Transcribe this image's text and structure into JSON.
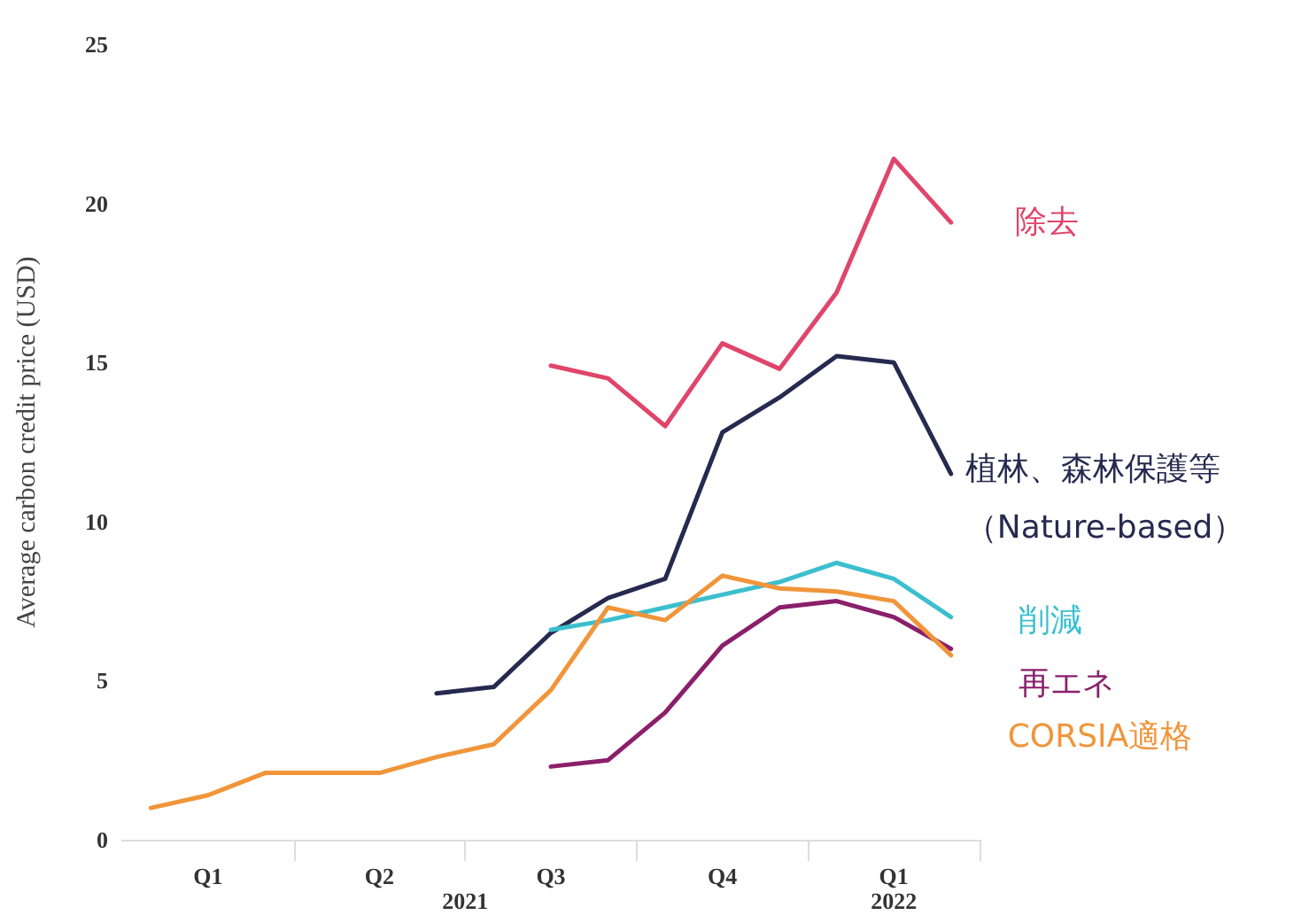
{
  "chart_data": {
    "type": "line",
    "ylabel": "Average carbon credit price (USD)",
    "categories": [
      null,
      "Q1",
      null,
      null,
      "Q2",
      null,
      null,
      "Q3",
      null,
      null,
      "Q4",
      null,
      null,
      "Q1",
      null
    ],
    "annotations": [
      "2021",
      "2022"
    ],
    "series": [
      {
        "name": "除去",
        "color": "#e0456a",
        "values": [
          null,
          null,
          null,
          null,
          null,
          null,
          null,
          14.9,
          14.5,
          13.0,
          15.6,
          14.8,
          17.2,
          21.4,
          19.4
        ]
      },
      {
        "name": "植林、森林保護等（Nature-based）",
        "color": "#262a4f",
        "values": [
          null,
          null,
          null,
          null,
          null,
          4.6,
          4.8,
          6.5,
          7.6,
          8.2,
          12.8,
          13.9,
          15.2,
          15.0,
          11.5
        ]
      },
      {
        "name": "削減",
        "color": "#3bbfcf",
        "values": [
          null,
          null,
          null,
          null,
          null,
          null,
          null,
          6.6,
          6.9,
          7.3,
          7.7,
          8.1,
          8.7,
          8.2,
          7.0
        ]
      },
      {
        "name": "再エネ",
        "color": "#8a1f6b",
        "values": [
          null,
          null,
          null,
          null,
          null,
          null,
          null,
          2.3,
          2.5,
          4.0,
          6.1,
          7.3,
          7.5,
          7.0,
          6.0
        ]
      },
      {
        "name": "CORSIA適格",
        "color": "#f0953a",
        "values": [
          1.0,
          1.4,
          2.1,
          2.1,
          2.1,
          2.6,
          3.0,
          4.7,
          7.3,
          6.9,
          8.3,
          7.9,
          7.8,
          7.5,
          5.8
        ]
      }
    ],
    "ylim": [
      0,
      25
    ],
    "yticks": [
      0,
      5,
      10,
      15,
      20,
      25
    ],
    "grid": false,
    "legend": false,
    "marker": "none",
    "line_style": "solid"
  }
}
